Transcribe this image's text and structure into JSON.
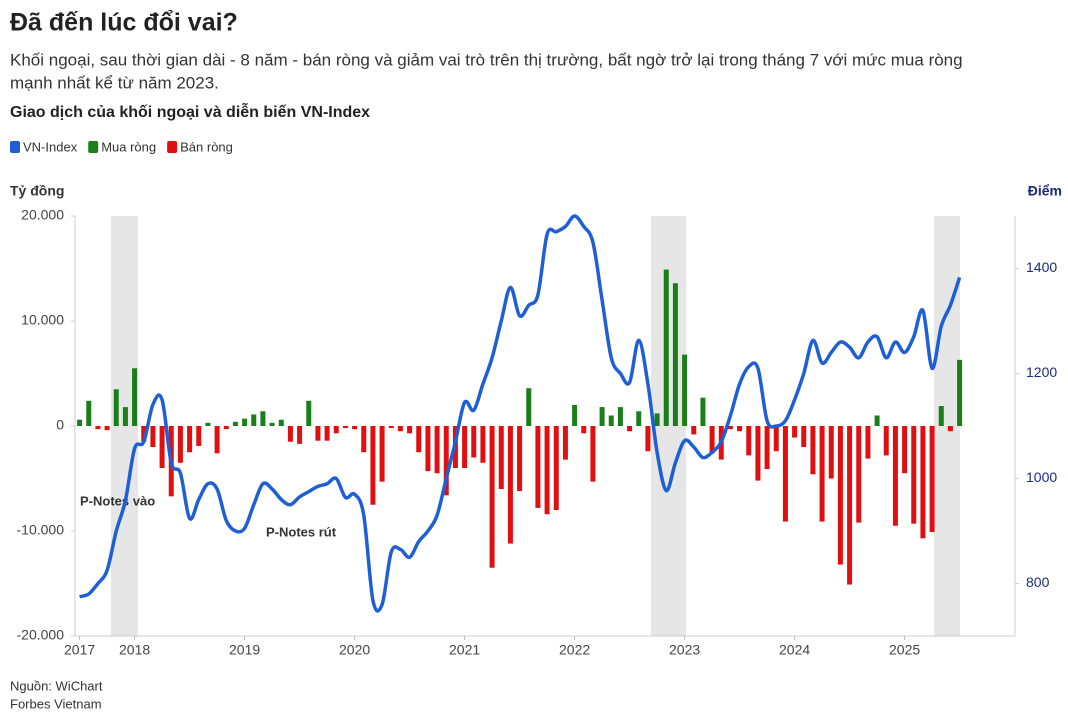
{
  "chart_data": {
    "type": "bar_line",
    "title": "Đã đến lúc đổi vai?",
    "subtitle_lines": [
      "Khối ngoại, sau thời gian dài - 8 năm - bán ròng và giảm vai trò trên thị trường, bất ngờ trở lại trong tháng 7 với mức mua ròng",
      "mạnh nhất kể từ năm 2023."
    ],
    "chart_title": "Giao dịch của khối ngoại và diễn biến VN-Index",
    "y_label": "Tỷ đồng",
    "y2_label": "Điểm",
    "annotations": [
      "P-Notes vào",
      "P-Notes rút"
    ],
    "source": [
      "Nguồn: WiChart",
      "Forbes Vietnam"
    ],
    "categories": [
      "2017",
      null,
      null,
      null,
      null,
      null,
      "2018",
      null,
      null,
      null,
      null,
      null,
      null,
      null,
      null,
      null,
      null,
      null,
      "2019",
      null,
      null,
      null,
      null,
      null,
      null,
      null,
      null,
      null,
      null,
      null,
      "2020",
      null,
      null,
      null,
      null,
      null,
      null,
      null,
      null,
      null,
      null,
      null,
      "2021",
      null,
      null,
      null,
      null,
      null,
      null,
      null,
      null,
      null,
      null,
      null,
      "2022",
      null,
      null,
      null,
      null,
      null,
      null,
      null,
      null,
      null,
      null,
      null,
      "2023",
      null,
      null,
      null,
      null,
      null,
      null,
      null,
      null,
      null,
      null,
      null,
      "2024",
      null,
      null,
      null,
      null,
      null,
      null,
      null,
      null,
      null,
      null,
      null,
      "2025",
      null,
      null,
      null,
      null,
      null,
      null
    ],
    "ylim": [
      -20000,
      20000
    ],
    "yticks": [
      {
        "value": 20000,
        "label": "20.000"
      },
      {
        "value": 10000,
        "label": "10.000"
      },
      0,
      {
        "value": -10000,
        "label": "-10.000"
      },
      {
        "value": -20000,
        "label": "-20.000"
      }
    ],
    "y2lim": [
      700,
      1500
    ],
    "y2ticks": [
      800,
      1000,
      1200,
      1400
    ],
    "series": [
      {
        "name": "VN-Index",
        "color": "#1f5fd6",
        "axis": "y2",
        "kind": "line",
        "values": [
          775,
          780,
          800,
          825,
          900,
          958,
          1057,
          1070,
          1141,
          1150,
          1030,
          1010,
          924,
          960,
          990,
          980,
          920,
          900,
          905,
          950,
          990,
          980,
          960,
          950,
          965,
          975,
          985,
          990,
          1000,
          964,
          970,
          930,
          768,
          760,
          860,
          865,
          850,
          880,
          900,
          930,
          1000,
          1070,
          1145,
          1130,
          1180,
          1230,
          1300,
          1364,
          1310,
          1330,
          1350,
          1465,
          1470,
          1480,
          1500,
          1480,
          1450,
          1340,
          1230,
          1200,
          1183,
          1263,
          1180,
          1050,
          977,
          1030,
          1072,
          1060,
          1040,
          1050,
          1070,
          1120,
          1180,
          1213,
          1210,
          1110,
          1100,
          1110,
          1150,
          1200,
          1263,
          1220,
          1240,
          1260,
          1250,
          1230,
          1260,
          1270,
          1230,
          1260,
          1240,
          1270,
          1320,
          1210,
          1290,
          1330,
          1383
        ]
      },
      {
        "name": "Mua ròng",
        "color": "#1a7f1a",
        "kind": "bar",
        "values": [
          600,
          2400,
          null,
          null,
          3500,
          1800,
          5500,
          null,
          null,
          null,
          null,
          null,
          null,
          null,
          300,
          null,
          null,
          400,
          700,
          1100,
          1400,
          300,
          600,
          null,
          null,
          2400,
          null,
          null,
          null,
          null,
          null,
          null,
          null,
          null,
          null,
          null,
          null,
          null,
          null,
          null,
          null,
          null,
          null,
          null,
          null,
          null,
          null,
          null,
          null,
          3600,
          null,
          null,
          null,
          null,
          2000,
          null,
          null,
          1800,
          1000,
          1800,
          null,
          1400,
          null,
          1200,
          14900,
          13600,
          6800,
          null,
          2700,
          null,
          null,
          null,
          null,
          null,
          null,
          null,
          null,
          null,
          null,
          null,
          null,
          null,
          null,
          null,
          null,
          null,
          null,
          1000,
          null,
          null,
          null,
          null,
          null,
          null,
          1900,
          null,
          6300
        ]
      },
      {
        "name": "Bán ròng",
        "color": "#e01010",
        "kind": "bar",
        "values": [
          null,
          null,
          -300,
          -400,
          null,
          null,
          null,
          -1500,
          -2000,
          -4000,
          -6700,
          -3500,
          -2500,
          -1900,
          null,
          -2600,
          -300,
          null,
          null,
          null,
          null,
          null,
          null,
          -1500,
          -1700,
          null,
          -1400,
          -1400,
          -700,
          -200,
          -300,
          -2500,
          -7500,
          -5300,
          -200,
          -500,
          -700,
          -2500,
          -4300,
          -4500,
          -6600,
          -4000,
          -4000,
          -3000,
          -3500,
          -13500,
          -6000,
          -11200,
          -6200,
          null,
          -7800,
          -8400,
          -8000,
          -3200,
          null,
          -700,
          -5300,
          null,
          null,
          null,
          -500,
          null,
          -2400,
          null,
          null,
          null,
          null,
          -800,
          null,
          -2600,
          -3200,
          -300,
          -500,
          -2800,
          -5200,
          -4100,
          -2400,
          -9100,
          -1100,
          -2000,
          -4600,
          -9100,
          -5000,
          -13200,
          -15100,
          -9200,
          -3100,
          null,
          -2800,
          -9500,
          -4500,
          -9300,
          -10700,
          -10100,
          null,
          -500,
          null
        ]
      }
    ]
  }
}
